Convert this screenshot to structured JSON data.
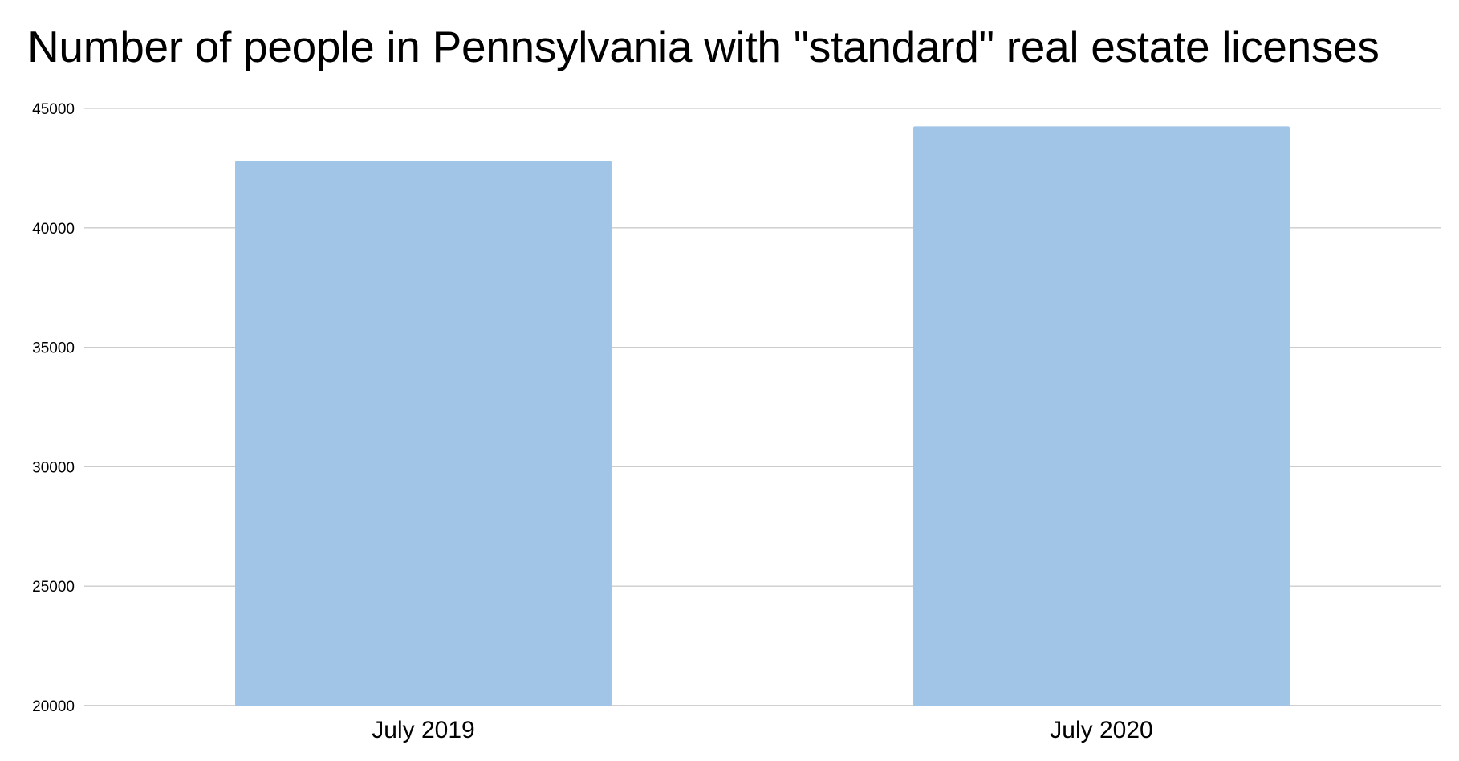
{
  "chart_data": {
    "type": "bar",
    "title": "Number of people in Pennsylvania with \"standard\" real estate licenses",
    "xlabel": "",
    "ylabel": "",
    "categories": [
      "July 2019",
      "July 2020"
    ],
    "values": [
      42800,
      44250
    ],
    "ylim": [
      20000,
      45000
    ],
    "yticks": [
      20000,
      25000,
      30000,
      35000,
      40000,
      45000
    ],
    "grid": true,
    "legend": "none",
    "colors": {
      "bar": "#a0c5e6",
      "grid": "#cccccc",
      "text": "#000000"
    }
  }
}
